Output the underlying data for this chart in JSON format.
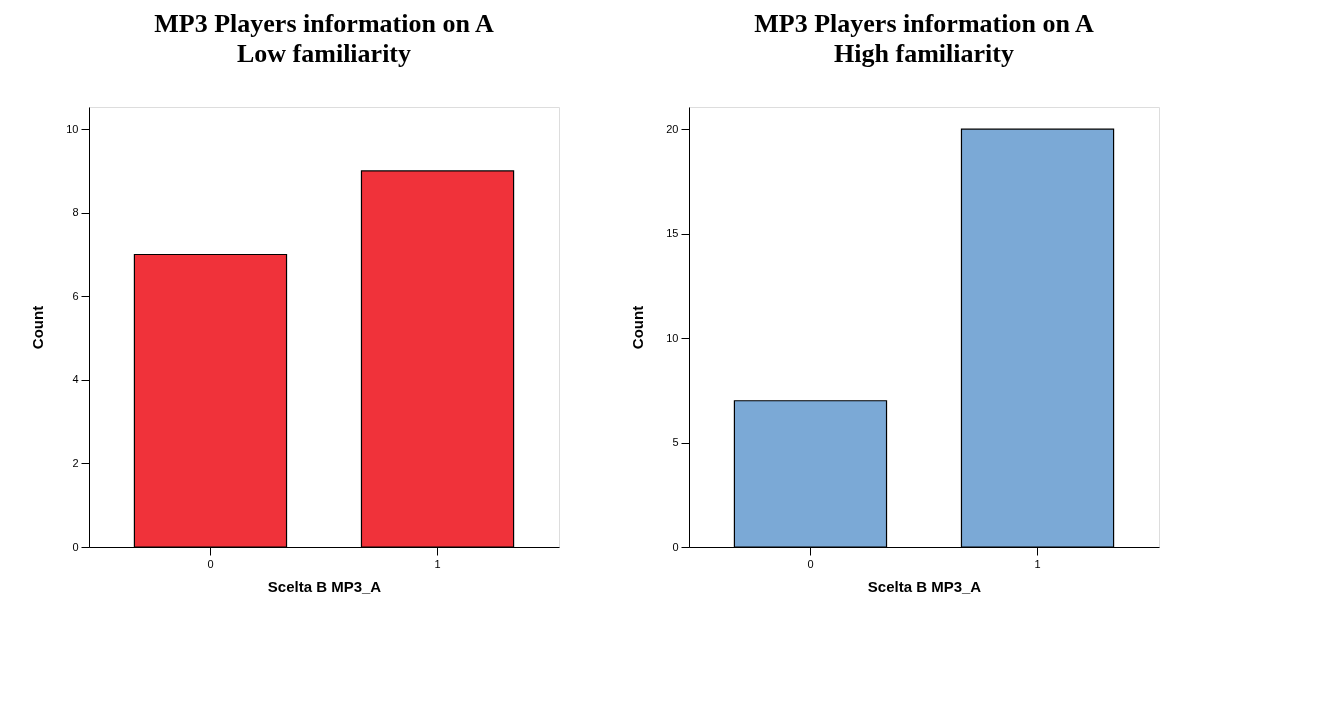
{
  "chart_data": [
    {
      "type": "bar",
      "title": "MP3 Players information on A\nLow familiarity",
      "xlabel": "Scelta B MP3_A",
      "ylabel": "Count",
      "categories": [
        "0",
        "1"
      ],
      "series": [
        {
          "color": "#f0323a",
          "values": [
            7,
            9
          ]
        }
      ],
      "ylim": [
        0,
        10.53
      ],
      "yticks": [
        0,
        2,
        4,
        6,
        8,
        10
      ],
      "grid": false,
      "legend": false
    },
    {
      "type": "bar",
      "title": "MP3 Players information on A\nHigh familiarity",
      "xlabel": "Scelta B MP3_A",
      "ylabel": "Count",
      "categories": [
        "0",
        "1"
      ],
      "series": [
        {
          "color": "#7ba9d6",
          "values": [
            7,
            20
          ]
        }
      ],
      "ylim": [
        0,
        21.06
      ],
      "yticks": [
        0,
        5,
        10,
        15,
        20
      ],
      "grid": false,
      "legend": false
    }
  ]
}
